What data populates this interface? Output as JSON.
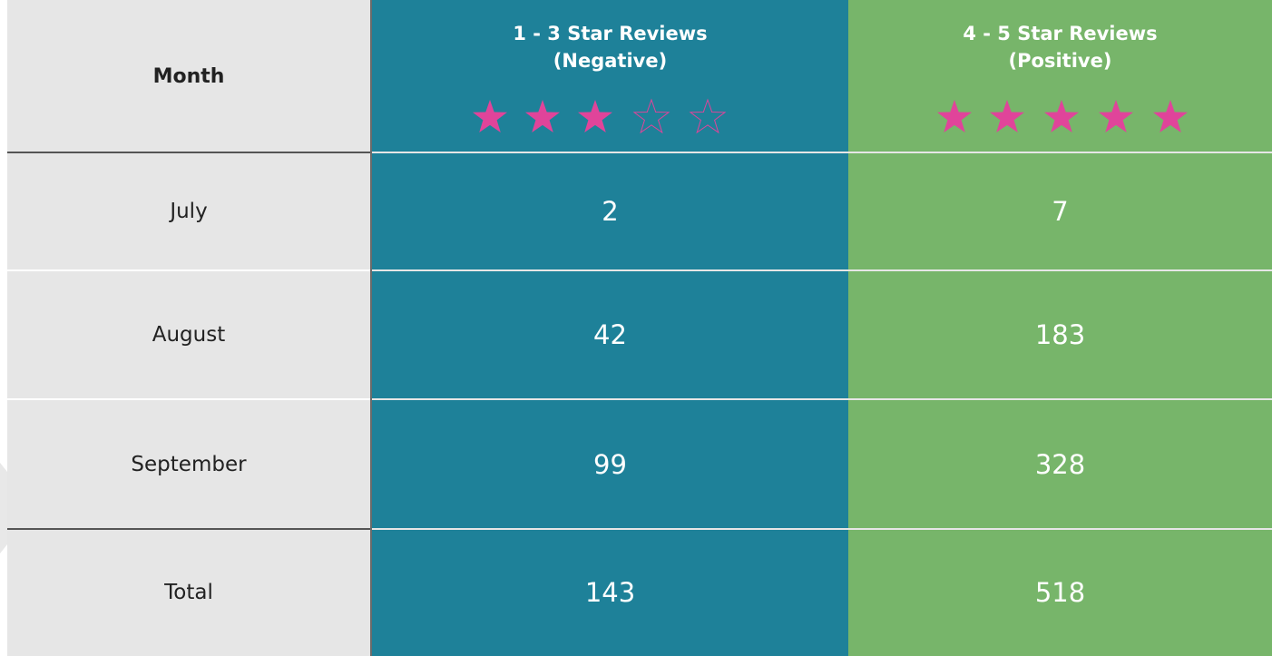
{
  "table": {
    "header": [
      {
        "title": "Month"
      },
      {
        "title": "1 - 3 Star Reviews",
        "subtitle": "(Negative)"
      },
      {
        "title": "4 - 5 Star Reviews",
        "subtitle": "(Positive)"
      }
    ],
    "rows": [
      [
        "July",
        2,
        7
      ],
      [
        "August",
        42,
        183
      ],
      [
        "September",
        99,
        328
      ],
      [
        "Total",
        143,
        518
      ]
    ]
  }
}
